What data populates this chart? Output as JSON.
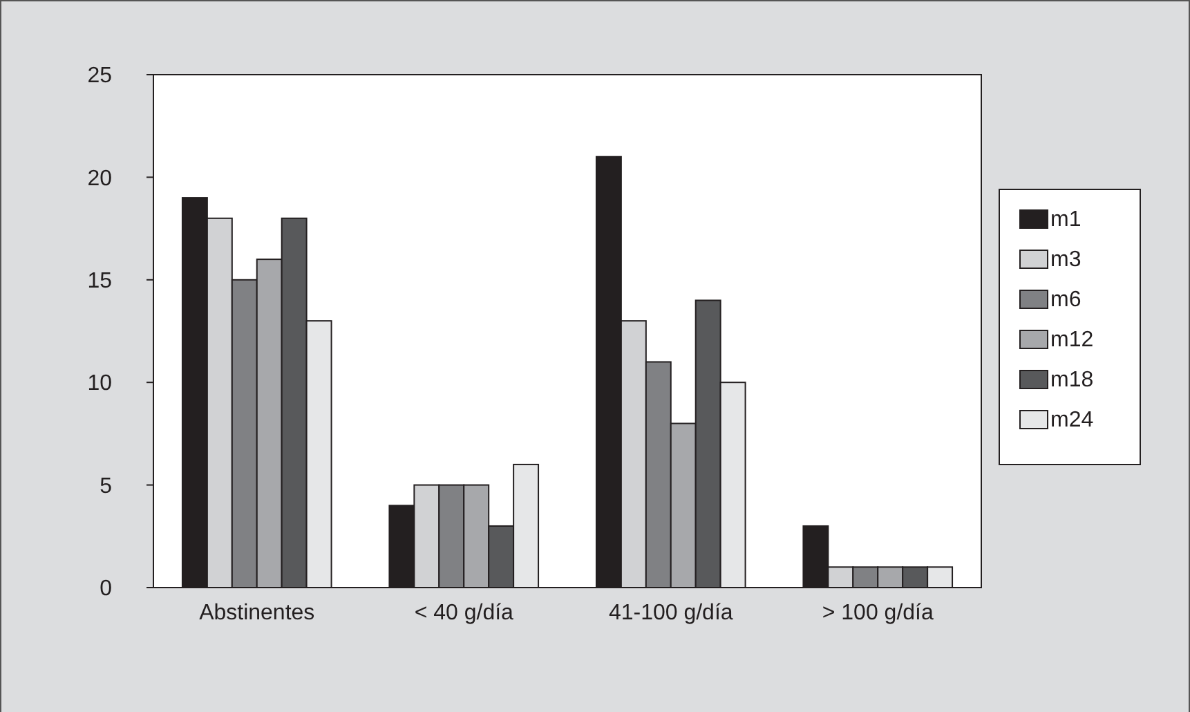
{
  "chart_data": {
    "type": "bar",
    "categories": [
      "Abstinentes",
      "< 40 g/día",
      "41-100 g/día",
      "> 100 g/día"
    ],
    "series": [
      {
        "name": "m1",
        "color": "#231f20",
        "values": [
          19,
          4,
          21,
          3
        ]
      },
      {
        "name": "m3",
        "color": "#d1d2d4",
        "values": [
          18,
          5,
          13,
          1
        ]
      },
      {
        "name": "m6",
        "color": "#808184",
        "values": [
          15,
          5,
          11,
          1
        ]
      },
      {
        "name": "m12",
        "color": "#a7a8ab",
        "values": [
          16,
          5,
          8,
          1
        ]
      },
      {
        "name": "m18",
        "color": "#58595b",
        "values": [
          18,
          3,
          14,
          1
        ]
      },
      {
        "name": "m24",
        "color": "#e6e7e8",
        "values": [
          13,
          6,
          10,
          1
        ]
      }
    ],
    "ylim": [
      0,
      25
    ],
    "yticks": [
      0,
      5,
      10,
      15,
      20,
      25
    ],
    "grid": false,
    "legend": "right"
  }
}
